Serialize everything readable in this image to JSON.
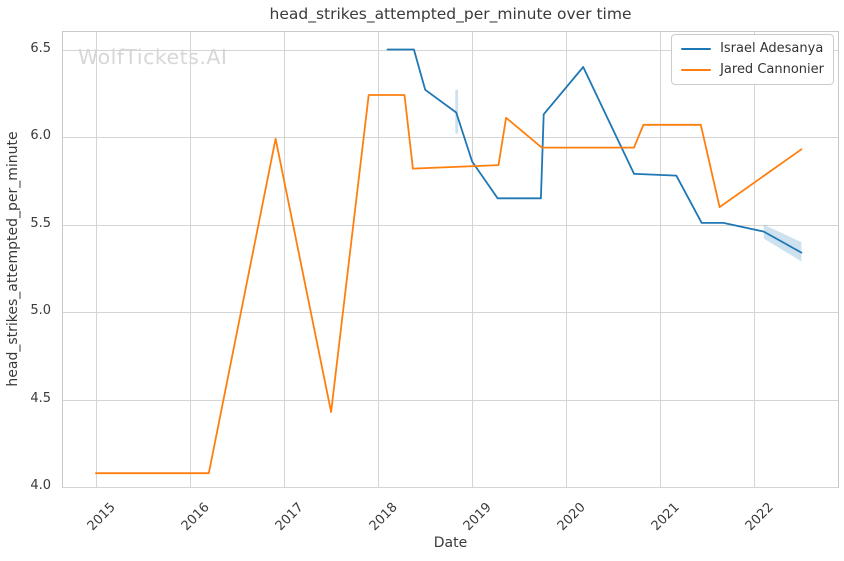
{
  "figure": {
    "watermark": "WolfTickets.AI"
  },
  "chart_data": {
    "type": "line",
    "title": "head_strikes_attempted_per_minute over time",
    "xlabel": "Date",
    "ylabel": "head_strikes_attempted_per_minute",
    "x_ticks": [
      2015,
      2016,
      2017,
      2018,
      2019,
      2020,
      2021,
      2022
    ],
    "x_tick_labels": [
      "2015",
      "2016",
      "2017",
      "2018",
      "2019",
      "2020",
      "2021",
      "2022"
    ],
    "y_ticks": [
      4.0,
      4.5,
      5.0,
      5.5,
      6.0,
      6.5
    ],
    "xlim": [
      2014.65,
      2022.91
    ],
    "ylim": [
      3.99,
      6.6
    ],
    "grid": true,
    "legend": {
      "position": "upper right"
    },
    "series": [
      {
        "name": "Israel Adesanya",
        "color": "#1f77b4",
        "x": [
          2018.1,
          2018.38,
          2018.5,
          2018.83,
          2019.0,
          2019.27,
          2019.73,
          2019.76,
          2020.18,
          2020.72,
          2021.17,
          2021.44,
          2021.67,
          2022.1,
          2022.5
        ],
        "y": [
          6.5,
          6.5,
          6.27,
          6.14,
          5.86,
          5.65,
          5.65,
          6.13,
          6.4,
          5.79,
          5.78,
          5.51,
          5.51,
          5.46,
          5.34
        ]
      },
      {
        "name": "Jared Cannonier",
        "color": "#ff7f0e",
        "x": [
          2015.0,
          2016.2,
          2016.91,
          2017.5,
          2017.9,
          2018.28,
          2018.37,
          2019.28,
          2019.36,
          2019.74,
          2020.72,
          2020.82,
          2021.43,
          2021.63,
          2022.5
        ],
        "y": [
          4.08,
          4.08,
          5.99,
          4.43,
          6.24,
          6.24,
          5.82,
          5.84,
          6.11,
          5.94,
          5.94,
          6.07,
          6.07,
          5.6,
          5.93
        ]
      }
    ],
    "confidence_bands": [
      {
        "series": "Israel Adesanya",
        "color": "#1f77b4",
        "opacity": 0.22,
        "x": [
          2018.82,
          2018.85
        ],
        "upper": [
          6.27,
          6.27
        ],
        "lower": [
          6.02,
          6.02
        ]
      },
      {
        "series": "Israel Adesanya",
        "color": "#1f77b4",
        "opacity": 0.22,
        "x": [
          2022.1,
          2022.5
        ],
        "upper": [
          5.5,
          5.4
        ],
        "lower": [
          5.42,
          5.29
        ]
      }
    ],
    "colors": {
      "series_blue": "#1f77b4",
      "series_orange": "#ff7f0e",
      "grid": "#d5d5d5",
      "text": "#3a3a3a",
      "watermark": "#d7d7d7"
    }
  }
}
